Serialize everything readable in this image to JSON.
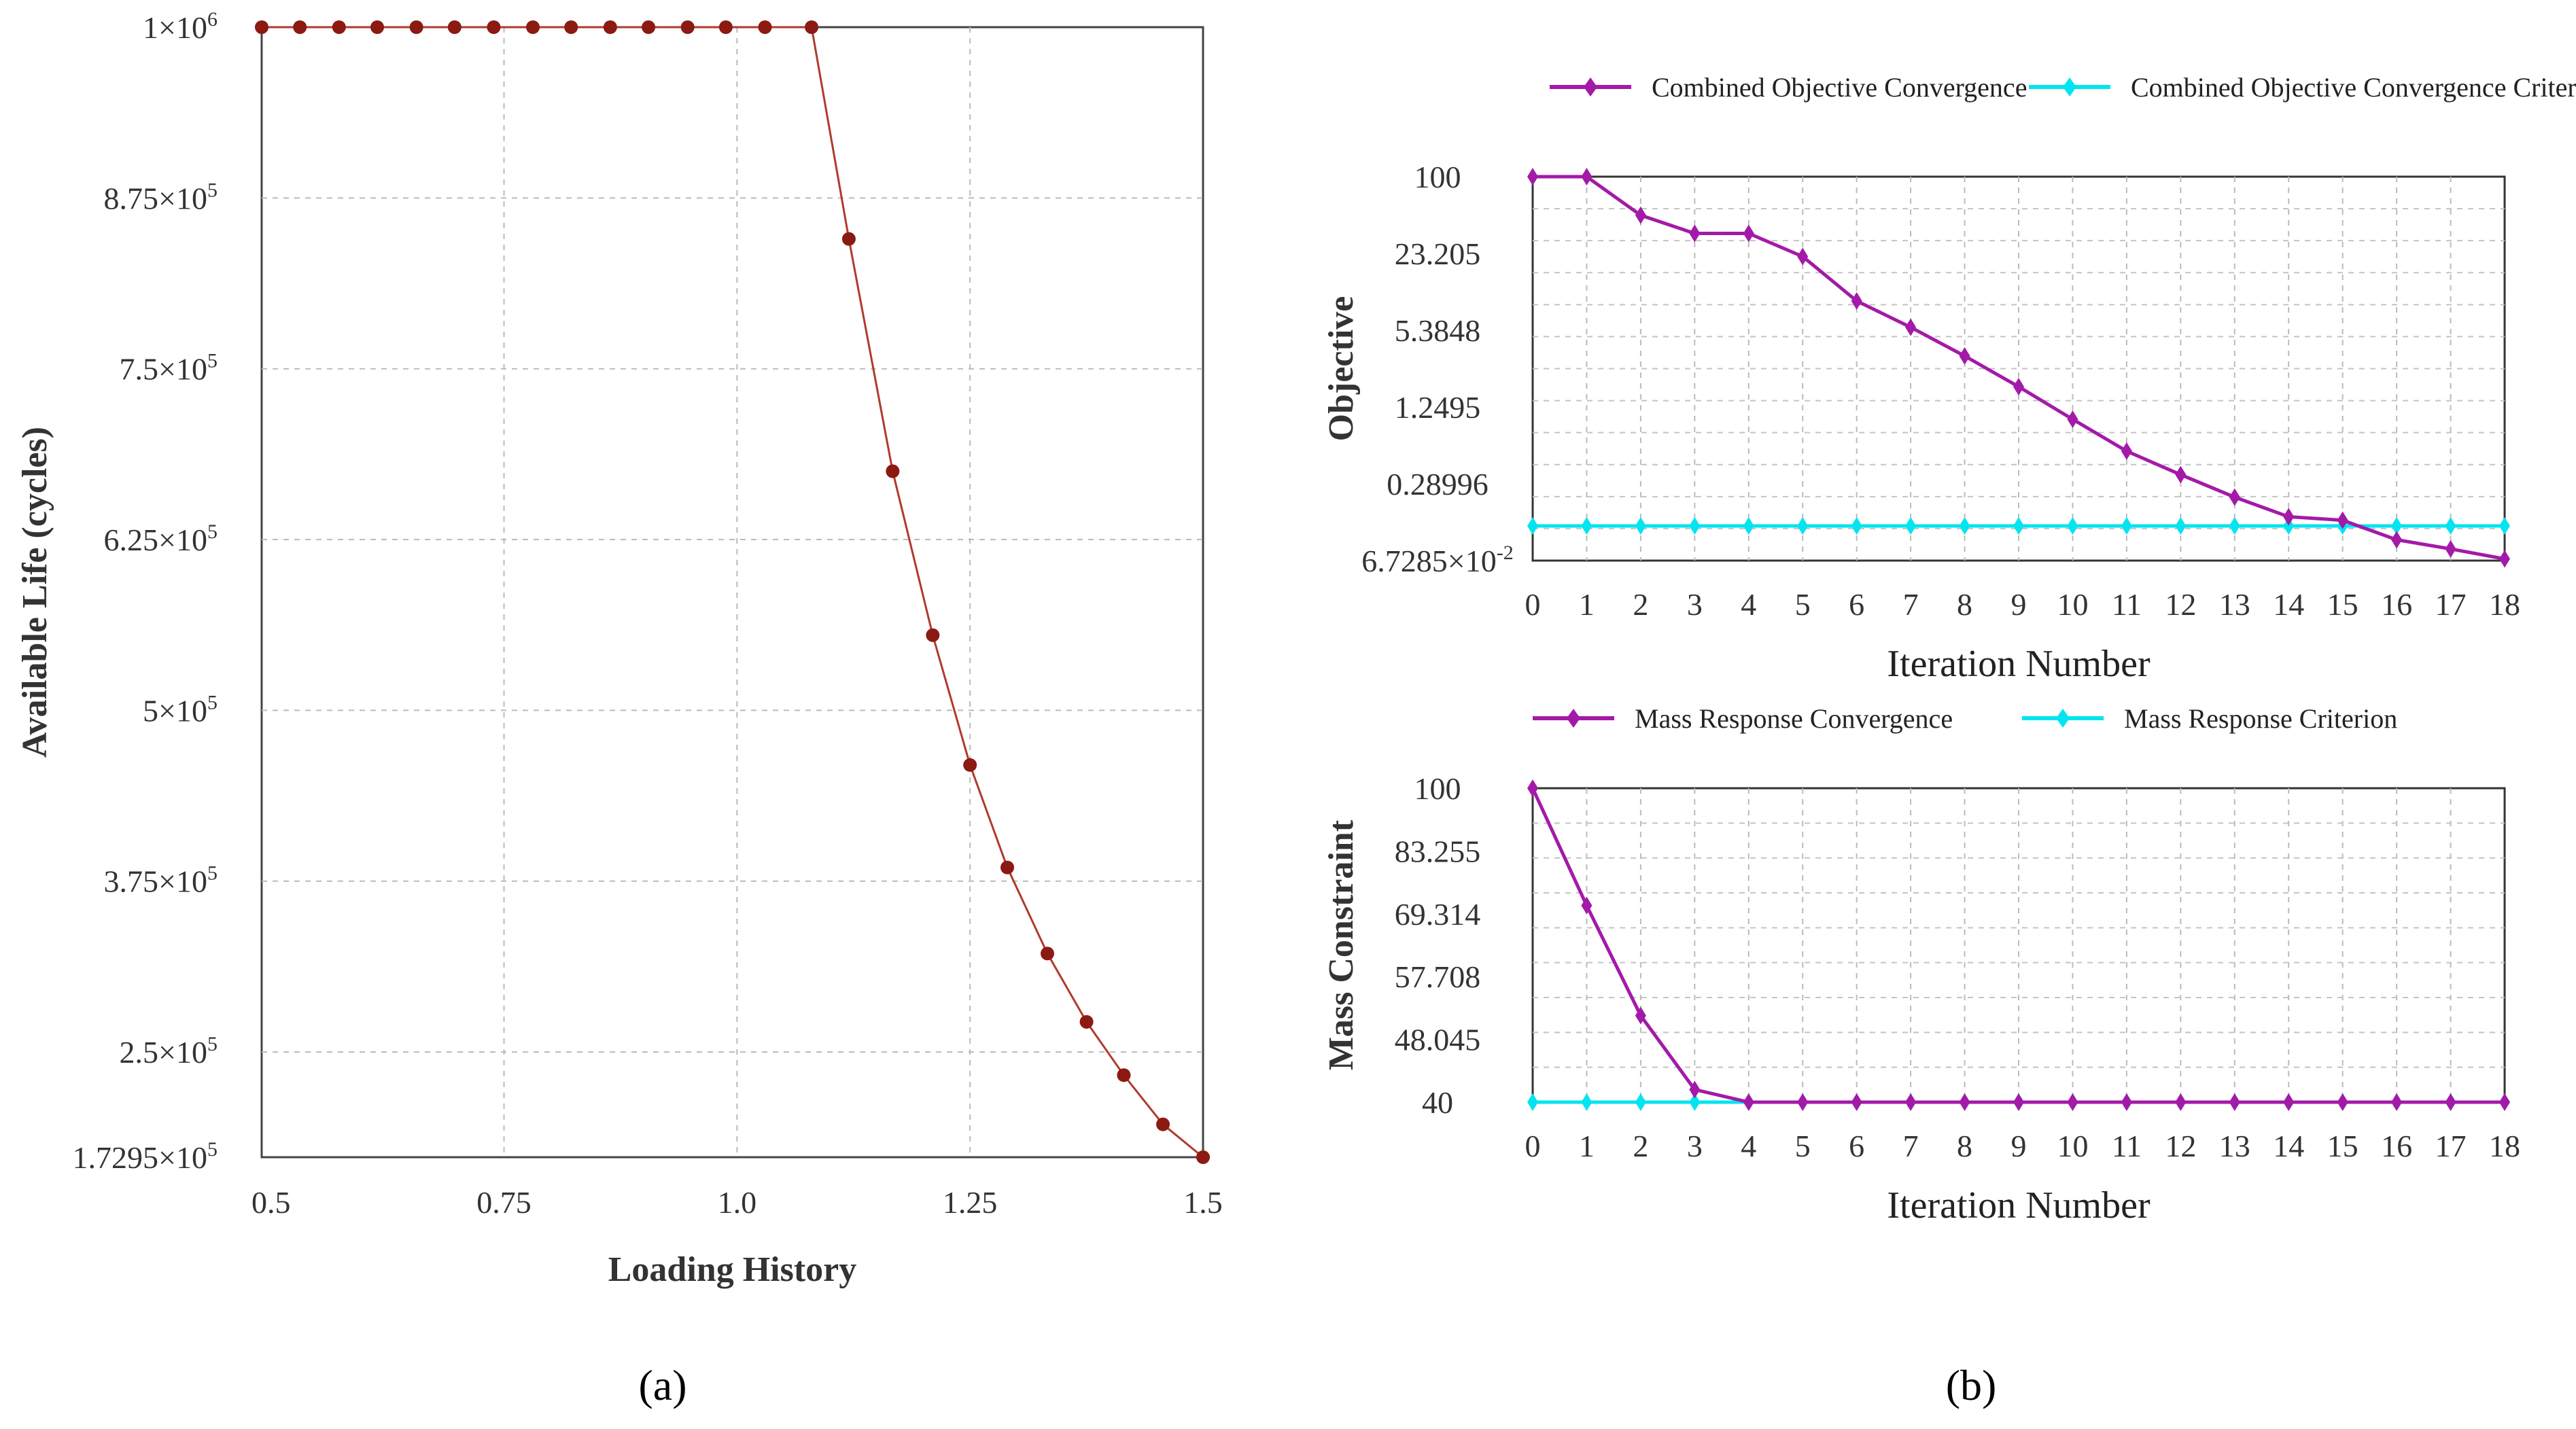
{
  "chart_data": [
    {
      "type": "line",
      "panel_label": "(a)",
      "xlabel": "Loading History",
      "ylabel": "Available Life (cycles)",
      "xlim": [
        0.49,
        1.5
      ],
      "ylim": [
        172950,
        1000000
      ],
      "x_ticks": [
        0.5,
        0.75,
        1.0,
        1.25,
        1.5
      ],
      "x_tick_labels": [
        "0.5",
        "0.75",
        "1.0",
        "1.25",
        "1.5"
      ],
      "y_ticks": [
        1000000,
        875000,
        750000,
        625000,
        500000,
        375000,
        250000,
        172950
      ],
      "y_tick_labels": [
        {
          "mantissa": "1×10",
          "exp": "6"
        },
        {
          "mantissa": "8.75×10",
          "exp": "5"
        },
        {
          "mantissa": "7.5×10",
          "exp": "5"
        },
        {
          "mantissa": "6.25×10",
          "exp": "5"
        },
        {
          "mantissa": "5×10",
          "exp": "5"
        },
        {
          "mantissa": "3.75×10",
          "exp": "5"
        },
        {
          "mantissa": "2.5×10",
          "exp": "5"
        },
        {
          "mantissa": "1.7295×10",
          "exp": "5"
        }
      ],
      "grid": true,
      "series": [
        {
          "color": "#b03a2e",
          "marker_color": "#8b1a12",
          "x": [
            0.49,
            0.531,
            0.573,
            0.614,
            0.656,
            0.697,
            0.739,
            0.781,
            0.822,
            0.864,
            0.905,
            0.947,
            0.988,
            1.03,
            1.08,
            1.12,
            1.167,
            1.21,
            1.25,
            1.29,
            1.333,
            1.375,
            1.415,
            1.457,
            1.5
          ],
          "y": [
            1000000,
            1000000,
            1000000,
            1000000,
            1000000,
            1000000,
            1000000,
            1000000,
            1000000,
            1000000,
            1000000,
            1000000,
            1000000,
            1000000,
            1000000,
            845000,
            675000,
            555000,
            460000,
            385000,
            322000,
            272000,
            233000,
            197000,
            172950
          ]
        }
      ]
    },
    {
      "type": "line",
      "panel_label": "(b)",
      "xlabel": "Iteration Number",
      "ylabel": "Objective",
      "y_scale": "log",
      "xlim": [
        0,
        18
      ],
      "ylim": [
        0.067285,
        100
      ],
      "x_ticks": [
        0,
        1,
        2,
        3,
        4,
        5,
        6,
        7,
        8,
        9,
        10,
        11,
        12,
        13,
        14,
        15,
        16,
        17,
        18
      ],
      "y_ticks": [
        100,
        23.205,
        5.3848,
        1.2495,
        0.28996,
        0.067285
      ],
      "y_tick_labels": [
        {
          "mantissa": "100",
          "exp": ""
        },
        {
          "mantissa": "23.205",
          "exp": ""
        },
        {
          "mantissa": "5.3848",
          "exp": ""
        },
        {
          "mantissa": "1.2495",
          "exp": ""
        },
        {
          "mantissa": "0.28996",
          "exp": ""
        },
        {
          "mantissa": "6.7285×10",
          "exp": "-2"
        }
      ],
      "legend_position": "top",
      "series": [
        {
          "name": "Combined Objective Convergence",
          "color": "#a31aa8",
          "x": [
            0,
            1,
            2,
            3,
            4,
            5,
            6,
            7,
            8,
            9,
            10,
            11,
            12,
            13,
            14,
            15,
            16,
            17,
            18
          ],
          "y": [
            100,
            100,
            48,
            34,
            34,
            21.9,
            9.4,
            5.7,
            3.3,
            1.84,
            0.99,
            0.54,
            0.345,
            0.225,
            0.155,
            0.145,
            0.1,
            0.084,
            0.0695
          ]
        },
        {
          "name": "Combined Objective Convergence Criterion",
          "color": "#00e5ef",
          "x": [
            0,
            1,
            2,
            3,
            4,
            5,
            6,
            7,
            8,
            9,
            10,
            11,
            12,
            13,
            14,
            15,
            16,
            17,
            18
          ],
          "y": [
            0.13,
            0.13,
            0.13,
            0.13,
            0.13,
            0.13,
            0.13,
            0.13,
            0.13,
            0.13,
            0.13,
            0.13,
            0.13,
            0.13,
            0.13,
            0.13,
            0.13,
            0.13,
            0.13
          ]
        }
      ]
    },
    {
      "type": "line",
      "panel_label": "",
      "xlabel": "Iteration Number",
      "ylabel": "Mass Constraint",
      "y_scale": "log",
      "xlim": [
        0,
        18
      ],
      "ylim": [
        40,
        100
      ],
      "x_ticks": [
        0,
        1,
        2,
        3,
        4,
        5,
        6,
        7,
        8,
        9,
        10,
        11,
        12,
        13,
        14,
        15,
        16,
        17,
        18
      ],
      "y_ticks": [
        100,
        83.255,
        69.314,
        57.708,
        48.045,
        40
      ],
      "y_tick_labels": [
        {
          "mantissa": "100",
          "exp": ""
        },
        {
          "mantissa": "83.255",
          "exp": ""
        },
        {
          "mantissa": "69.314",
          "exp": ""
        },
        {
          "mantissa": "57.708",
          "exp": ""
        },
        {
          "mantissa": "48.045",
          "exp": ""
        },
        {
          "mantissa": "40",
          "exp": ""
        }
      ],
      "legend_position": "top",
      "series": [
        {
          "name": "Mass Response Convergence",
          "color": "#a31aa8",
          "x": [
            0,
            1,
            2,
            3,
            4,
            5,
            6,
            7,
            8,
            9,
            10,
            11,
            12,
            13,
            14,
            15,
            16,
            17,
            18
          ],
          "y": [
            100,
            71,
            51.5,
            41.5,
            40,
            40,
            40,
            40,
            40,
            40,
            40,
            40,
            40,
            40,
            40,
            40,
            40,
            40,
            40
          ]
        },
        {
          "name": "Mass Response Criterion",
          "color": "#00e5ef",
          "x": [
            0,
            1,
            2,
            3,
            4,
            5,
            6,
            7,
            8,
            9,
            10,
            11,
            12,
            13,
            14,
            15,
            16,
            17,
            18
          ],
          "y": [
            40,
            40,
            40,
            40,
            40,
            40,
            40,
            40,
            40,
            40,
            40,
            40,
            40,
            40,
            40,
            40,
            40,
            40,
            40
          ]
        }
      ]
    }
  ]
}
